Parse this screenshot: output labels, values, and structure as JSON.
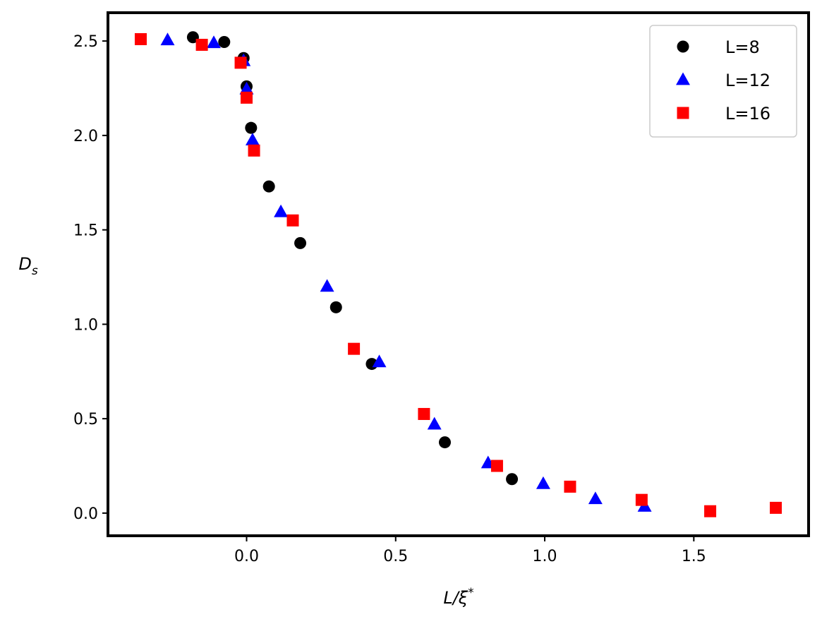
{
  "chart_data": {
    "type": "scatter",
    "xlabel": "L/ξ*",
    "ylabel": "Ds",
    "xlim": [
      -0.465,
      1.885
    ],
    "ylim": [
      -0.12,
      2.65
    ],
    "xticks": [
      0.0,
      0.5,
      1.0,
      1.5
    ],
    "yticks": [
      0.0,
      0.5,
      1.0,
      1.5,
      2.0,
      2.5
    ],
    "grid": false,
    "legend_position": "top-right",
    "series": [
      {
        "name": "L=8",
        "marker": "circle",
        "color": "#000000",
        "points": [
          [
            -0.18,
            2.52
          ],
          [
            -0.075,
            2.495
          ],
          [
            -0.01,
            2.41
          ],
          [
            0.0,
            2.26
          ],
          [
            0.015,
            2.04
          ],
          [
            0.075,
            1.73
          ],
          [
            0.18,
            1.43
          ],
          [
            0.3,
            1.09
          ],
          [
            0.42,
            0.79
          ],
          [
            0.665,
            0.375
          ],
          [
            0.89,
            0.18
          ]
        ]
      },
      {
        "name": "L=12",
        "marker": "triangle",
        "color": "#0000ff",
        "points": [
          [
            -0.265,
            2.505
          ],
          [
            -0.11,
            2.49
          ],
          [
            -0.01,
            2.395
          ],
          [
            0.0,
            2.245
          ],
          [
            0.02,
            1.975
          ],
          [
            0.115,
            1.595
          ],
          [
            0.27,
            1.2
          ],
          [
            0.445,
            0.8
          ],
          [
            0.63,
            0.47
          ],
          [
            0.81,
            0.265
          ],
          [
            0.995,
            0.155
          ],
          [
            1.17,
            0.075
          ],
          [
            1.335,
            0.035
          ]
        ]
      },
      {
        "name": "L=16",
        "marker": "square",
        "color": "#ff0000",
        "points": [
          [
            -0.355,
            2.51
          ],
          [
            -0.15,
            2.48
          ],
          [
            -0.02,
            2.385
          ],
          [
            0.0,
            2.2
          ],
          [
            0.025,
            1.92
          ],
          [
            0.155,
            1.55
          ],
          [
            0.36,
            0.87
          ],
          [
            0.595,
            0.525
          ],
          [
            0.84,
            0.25
          ],
          [
            1.085,
            0.14
          ],
          [
            1.325,
            0.07
          ],
          [
            1.555,
            0.01
          ],
          [
            1.775,
            0.028
          ]
        ]
      }
    ]
  }
}
